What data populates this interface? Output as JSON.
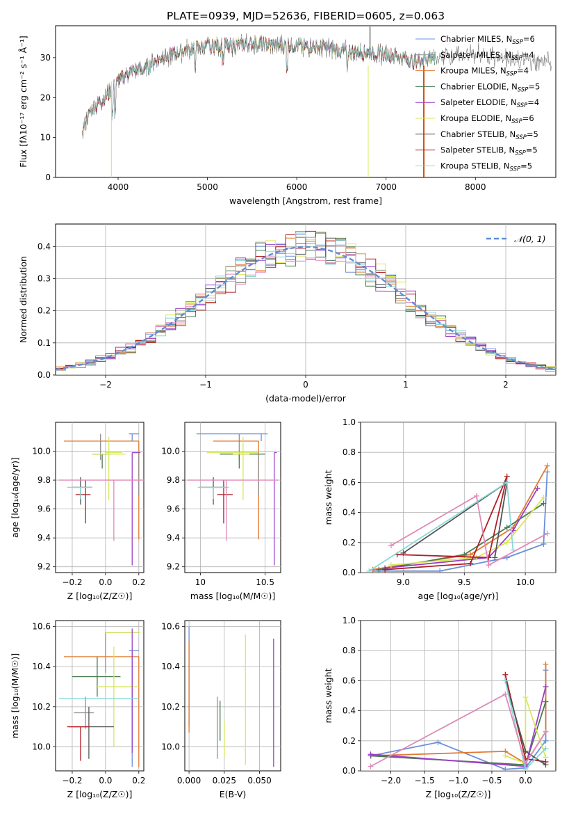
{
  "colors": [
    "#6a8fd9",
    "#8f8f8f",
    "#e07a30",
    "#4a7a50",
    "#9b3fc8",
    "#d8e85a",
    "#555555",
    "#b01e22",
    "#88d8d8",
    "#e088b8"
  ],
  "chart_data": [
    {
      "id": "spectrum",
      "type": "line",
      "title": "PLATE=0939, MJD=52636, FIBERID=0605, z=0.063",
      "xlabel": "wavelength [Angstrom, rest frame]",
      "ylabel": "Flux [fλ10⁻¹⁷ erg cm⁻² s⁻¹ Å⁻¹]",
      "xlim": [
        3300,
        8900
      ],
      "ylim": [
        0,
        38
      ],
      "xticks": [
        "4000",
        "5000",
        "6000",
        "7000",
        "8000"
      ],
      "yticks": [
        "0",
        "10",
        "20",
        "30"
      ],
      "legend": "top-right",
      "legend_entries": [
        {
          "name": "Chabrier MILES, N",
          "sub": "SSP",
          "suffix": "=6"
        },
        {
          "name": "Salpeter MILES, N",
          "sub": "SSP",
          "suffix": "=4"
        },
        {
          "name": "Kroupa MILES, N",
          "sub": "SSP",
          "suffix": "=4"
        },
        {
          "name": "Chabrier ELODIE, N",
          "sub": "SSP",
          "suffix": "=5"
        },
        {
          "name": "Salpeter ELODIE, N",
          "sub": "SSP",
          "suffix": "=4"
        },
        {
          "name": "Kroupa ELODIE, N",
          "sub": "SSP",
          "suffix": "=6"
        },
        {
          "name": "Chabrier STELIB, N",
          "sub": "SSP",
          "suffix": "=5"
        },
        {
          "name": "Salpeter STELIB, N",
          "sub": "SSP",
          "suffix": "=5"
        },
        {
          "name": "Kroupa STELIB, N",
          "sub": "SSP",
          "suffix": "=5"
        }
      ],
      "continuum": [
        [
          3600,
          12
        ],
        [
          3700,
          17
        ],
        [
          3800,
          19
        ],
        [
          3900,
          21
        ],
        [
          4000,
          24
        ],
        [
          4100,
          26
        ],
        [
          4200,
          27
        ],
        [
          4300,
          27
        ],
        [
          4400,
          29
        ],
        [
          4500,
          30
        ],
        [
          4700,
          31.5
        ],
        [
          4900,
          32.5
        ],
        [
          5100,
          33
        ],
        [
          5300,
          33
        ],
        [
          5500,
          33.5
        ],
        [
          5800,
          33
        ],
        [
          6000,
          33
        ],
        [
          6300,
          32.5
        ],
        [
          6600,
          31.5
        ],
        [
          6900,
          31
        ],
        [
          7100,
          30.5
        ],
        [
          7300,
          29
        ],
        [
          7500,
          30
        ],
        [
          7700,
          30.5
        ],
        [
          8000,
          31
        ],
        [
          8300,
          30
        ],
        [
          8500,
          29
        ],
        [
          8800,
          29
        ]
      ]
    },
    {
      "id": "residuals",
      "type": "histogram",
      "xlabel": "(data-model)/error",
      "ylabel": "Normed distribution",
      "xlim": [
        -2.5,
        2.5
      ],
      "ylim": [
        0,
        0.47
      ],
      "xticks": [
        "−2",
        "−1",
        "0",
        "1",
        "2"
      ],
      "yticks": [
        "0.0",
        "0.1",
        "0.2",
        "0.3",
        "0.4"
      ],
      "legend": "top-right",
      "legend_label": "𝒩(0, 1)",
      "bin_width": 0.1
    },
    {
      "id": "age_vs_Z",
      "type": "errorbar",
      "xlabel": "Z [log₁₀(Z/Z☉)]",
      "ylabel": "age  [log₁₀(age/yr)]",
      "xlim": [
        -0.3,
        0.23
      ],
      "ylim": [
        9.16,
        10.2
      ],
      "xticks": [
        "−0.2",
        "0.0",
        "0.2"
      ],
      "yticks": [
        "9.2",
        "9.4",
        "9.6",
        "9.8",
        "10.0"
      ],
      "points": [
        {
          "x": 0.16,
          "y": 10.12,
          "xerr": [
            0.02,
            0.04
          ],
          "yerr": [
            0.05,
            0.0
          ]
        },
        {
          "x": 0.2,
          "y": 10.07,
          "xerr": [
            0.45,
            0.0
          ],
          "yerr": [
            0.68,
            0.0
          ]
        },
        {
          "x": -0.03,
          "y": 10.0,
          "xerr": [
            0.0,
            0.0
          ],
          "yerr": [
            0.06,
            0.12
          ]
        },
        {
          "x": -0.02,
          "y": 9.98,
          "xerr": [
            0.06,
            0.05
          ],
          "yerr": [
            0.1,
            0.0
          ]
        },
        {
          "x": 0.1,
          "y": 9.99,
          "xerr": [
            0.1,
            0.0
          ],
          "yerr": [
            0.0,
            0.0
          ]
        },
        {
          "x": 0.02,
          "y": 9.98,
          "xerr": [
            0.1,
            0.1
          ],
          "yerr": [
            0.32,
            0.12
          ]
        },
        {
          "x": 0.16,
          "y": 9.99,
          "xerr": [
            0.0,
            0.05
          ],
          "yerr": [
            0.78,
            0.0
          ]
        },
        {
          "x": 0.2,
          "y": 9.99,
          "xerr": [
            0.0,
            0.0
          ],
          "yerr": [
            0.3,
            0.0
          ]
        },
        {
          "x": -0.15,
          "y": 9.75,
          "xerr": [
            0.05,
            0.07
          ],
          "yerr": [
            0.12,
            0.07
          ]
        },
        {
          "x": -0.12,
          "y": 9.7,
          "xerr": [
            0.06,
            0.03
          ],
          "yerr": [
            0.2,
            0.1
          ]
        },
        {
          "x": -0.15,
          "y": 9.75,
          "xerr": [
            0.08,
            0.07
          ],
          "yerr": [
            0.08,
            0.0
          ]
        },
        {
          "x": 0.05,
          "y": 9.8,
          "xerr": [
            0.33,
            0.2
          ],
          "yerr": [
            0.42,
            0.0
          ]
        }
      ]
    },
    {
      "id": "age_vs_mass",
      "type": "errorbar",
      "xlabel": "mass [log₁₀(M/M☉)]",
      "ylabel": "",
      "xlim": [
        9.88,
        10.62
      ],
      "ylim": [
        9.16,
        10.2
      ],
      "xticks": [
        "10",
        "10.5"
      ],
      "yticks": [
        "9.2",
        "9.4",
        "9.6",
        "9.8",
        "10.0"
      ],
      "points": [
        {
          "x": 10.47,
          "y": 10.12,
          "xerr": [
            0.5,
            0.05
          ],
          "yerr": [
            0.05,
            0.0
          ]
        },
        {
          "x": 10.45,
          "y": 10.07,
          "xerr": [
            0.35,
            0.0
          ],
          "yerr": [
            0.68,
            0.0
          ]
        },
        {
          "x": 10.3,
          "y": 10.0,
          "xerr": [
            0.0,
            0.0
          ],
          "yerr": [
            0.06,
            0.12
          ]
        },
        {
          "x": 10.3,
          "y": 9.98,
          "xerr": [
            0.15,
            0.2
          ],
          "yerr": [
            0.1,
            0.0
          ]
        },
        {
          "x": 10.35,
          "y": 9.99,
          "xerr": [
            0.3,
            0.1
          ],
          "yerr": [
            0.0,
            0.0
          ]
        },
        {
          "x": 10.33,
          "y": 9.98,
          "xerr": [
            0.08,
            0.05
          ],
          "yerr": [
            0.32,
            0.12
          ]
        },
        {
          "x": 10.57,
          "y": 9.99,
          "xerr": [
            0.0,
            0.02
          ],
          "yerr": [
            0.78,
            0.0
          ]
        },
        {
          "x": 10.45,
          "y": 9.99,
          "xerr": [
            0.0,
            0.0
          ],
          "yerr": [
            0.3,
            0.0
          ]
        },
        {
          "x": 10.1,
          "y": 9.75,
          "xerr": [
            0.1,
            0.1
          ],
          "yerr": [
            0.12,
            0.07
          ]
        },
        {
          "x": 10.18,
          "y": 9.7,
          "xerr": [
            0.05,
            0.07
          ],
          "yerr": [
            0.2,
            0.1
          ]
        },
        {
          "x": 10.1,
          "y": 9.75,
          "xerr": [
            0.12,
            0.12
          ],
          "yerr": [
            0.08,
            0.0
          ]
        },
        {
          "x": 10.2,
          "y": 9.8,
          "xerr": [
            0.3,
            0.4
          ],
          "yerr": [
            0.42,
            0.0
          ]
        }
      ]
    },
    {
      "id": "weight_vs_age",
      "type": "line",
      "xlabel": "age  [log₁₀(age/yr)]",
      "ylabel": "mass weight",
      "xlim": [
        8.65,
        10.25
      ],
      "ylim": [
        0.0,
        1.0
      ],
      "xticks": [
        "9.0",
        "9.5",
        "10.0"
      ],
      "yticks": [
        "0.0",
        "0.2",
        "0.4",
        "0.6",
        "0.8",
        "1.0"
      ],
      "series": [
        {
          "color": 0,
          "x": [
            8.75,
            9.3,
            9.85,
            10.15,
            10.18
          ],
          "y": [
            0.01,
            0.01,
            0.1,
            0.19,
            0.67
          ]
        },
        {
          "color": 2,
          "x": [
            8.75,
            9.55,
            9.9,
            10.18
          ],
          "y": [
            0.02,
            0.12,
            0.3,
            0.71
          ]
        },
        {
          "color": 3,
          "x": [
            8.8,
            9.5,
            9.85,
            10.15
          ],
          "y": [
            0.02,
            0.12,
            0.3,
            0.46
          ]
        },
        {
          "color": 4,
          "x": [
            8.85,
            9.7,
            9.9,
            10.1
          ],
          "y": [
            0.03,
            0.1,
            0.28,
            0.56
          ]
        },
        {
          "color": 5,
          "x": [
            8.9,
            9.6,
            9.85,
            10.15
          ],
          "y": [
            0.05,
            0.1,
            0.2,
            0.5
          ]
        },
        {
          "color": 7,
          "x": [
            8.95,
            9.7,
            9.85,
            9.55,
            8.85
          ],
          "y": [
            0.12,
            0.1,
            0.64,
            0.06,
            0.02
          ]
        },
        {
          "color": 6,
          "x": [
            9.0,
            9.85,
            9.75
          ],
          "y": [
            0.13,
            0.6,
            0.1
          ]
        },
        {
          "color": 8,
          "x": [
            8.72,
            9.85,
            9.9
          ],
          "y": [
            0.01,
            0.6,
            0.15
          ]
        },
        {
          "color": 9,
          "x": [
            8.9,
            9.6,
            9.7,
            10.18
          ],
          "y": [
            0.18,
            0.51,
            0.05,
            0.26
          ]
        }
      ]
    },
    {
      "id": "mass_vs_Z",
      "type": "errorbar",
      "xlabel": "Z [log₁₀(Z/Z☉)]",
      "ylabel": "mass [log₁₀(M/M☉)]",
      "xlim": [
        -0.3,
        0.23
      ],
      "ylim": [
        9.88,
        10.63
      ],
      "xticks": [
        "−0.2",
        "0.0",
        "0.2"
      ],
      "yticks": [
        "10.0",
        "10.2",
        "10.4",
        "10.6"
      ],
      "points": [
        {
          "x": 0.16,
          "y": 10.48,
          "xerr": [
            0.02,
            0.04
          ],
          "yerr": [
            0.58,
            0.0
          ]
        },
        {
          "x": 0.2,
          "y": 10.45,
          "xerr": [
            0.45,
            0.0
          ],
          "yerr": [
            0.55,
            0.0
          ]
        },
        {
          "x": 0.0,
          "y": 10.57,
          "xerr": [
            0.0,
            0.2
          ],
          "yerr": [
            0.2,
            0.0
          ]
        },
        {
          "x": -0.05,
          "y": 10.35,
          "xerr": [
            0.15,
            0.14
          ],
          "yerr": [
            0.1,
            0.1
          ]
        },
        {
          "x": 0.05,
          "y": 10.57,
          "xerr": [
            0.05,
            0.16
          ],
          "yerr": [
            0.0,
            0.0
          ]
        },
        {
          "x": 0.05,
          "y": 10.3,
          "xerr": [
            0.1,
            0.15
          ],
          "yerr": [
            0.3,
            0.2
          ]
        },
        {
          "x": 0.16,
          "y": 10.57,
          "xerr": [
            0.0,
            0.0
          ],
          "yerr": [
            0.6,
            0.02
          ]
        },
        {
          "x": -0.12,
          "y": 10.17,
          "xerr": [
            0.07,
            0.05
          ],
          "yerr": [
            0.08,
            0.08
          ]
        },
        {
          "x": -0.1,
          "y": 10.1,
          "xerr": [
            0.12,
            0.15
          ],
          "yerr": [
            0.16,
            0.1
          ]
        },
        {
          "x": -0.15,
          "y": 10.1,
          "xerr": [
            0.08,
            0.05
          ],
          "yerr": [
            0.17,
            0.0
          ]
        },
        {
          "x": 0.05,
          "y": 10.24,
          "xerr": [
            0.33,
            0.15
          ],
          "yerr": [
            0.0,
            0.0
          ]
        }
      ]
    },
    {
      "id": "mass_vs_ebv",
      "type": "errorbar",
      "xlabel": "E(B-V)",
      "ylabel": "",
      "xlim": [
        -0.003,
        0.065
      ],
      "ylim": [
        9.88,
        10.63
      ],
      "xticks": [
        "0.000",
        "0.025",
        "0.050"
      ],
      "yticks": [
        "10.0",
        "10.2",
        "10.4",
        "10.6"
      ],
      "points": [
        {
          "x": 0.0,
          "y": 10.3,
          "xerr": [
            0,
            0
          ],
          "yerr": [
            0.2,
            0.3
          ]
        },
        {
          "x": 0.0,
          "y": 10.3,
          "xerr": [
            0,
            0
          ],
          "yerr": [
            0.23,
            0.23
          ]
        },
        {
          "x": 0.02,
          "y": 10.1,
          "xerr": [
            0,
            0
          ],
          "yerr": [
            0.16,
            0.15
          ]
        },
        {
          "x": 0.022,
          "y": 10.13,
          "xerr": [
            0,
            0
          ],
          "yerr": [
            0.1,
            0.1
          ]
        },
        {
          "x": 0.025,
          "y": 10.05,
          "xerr": [
            0,
            0
          ],
          "yerr": [
            0.1,
            0.08
          ]
        },
        {
          "x": 0.04,
          "y": 10.25,
          "xerr": [
            0,
            0
          ],
          "yerr": [
            0.34,
            0.31
          ]
        },
        {
          "x": 0.06,
          "y": 10.22,
          "xerr": [
            0,
            0
          ],
          "yerr": [
            0.32,
            0.32
          ]
        }
      ]
    },
    {
      "id": "weight_vs_Z",
      "type": "line",
      "xlabel": "Z [log₁₀(Z/Z☉)]",
      "ylabel": "mass weight",
      "xlim": [
        -2.45,
        0.45
      ],
      "ylim": [
        0.0,
        1.0
      ],
      "xticks": [
        "−2.0",
        "−1.5",
        "−1.0",
        "−0.5",
        "0.0"
      ],
      "yticks": [
        "0.0",
        "0.2",
        "0.4",
        "0.6",
        "0.8",
        "1.0"
      ],
      "series": [
        {
          "color": 0,
          "x": [
            -2.3,
            -1.3,
            -0.3,
            0.0,
            0.3,
            0.3
          ],
          "y": [
            0.1,
            0.19,
            0.01,
            0.02,
            0.2,
            0.67
          ]
        },
        {
          "color": 2,
          "x": [
            -2.3,
            -0.3,
            0.0,
            0.3,
            0.3
          ],
          "y": [
            0.1,
            0.13,
            0.05,
            0.26,
            0.71
          ]
        },
        {
          "color": 3,
          "x": [
            -2.3,
            0.0,
            0.3
          ],
          "y": [
            0.1,
            0.04,
            0.46
          ]
        },
        {
          "color": 4,
          "x": [
            -2.3,
            0.0,
            0.3
          ],
          "y": [
            0.11,
            0.03,
            0.56
          ]
        },
        {
          "color": 5,
          "x": [
            -0.3,
            0.0,
            0.0,
            0.3
          ],
          "y": [
            0.1,
            0.05,
            0.49,
            0.09
          ]
        },
        {
          "color": 7,
          "x": [
            -0.3,
            0.0,
            0.3
          ],
          "y": [
            0.64,
            0.08,
            0.06
          ]
        },
        {
          "color": 6,
          "x": [
            -0.3,
            0.0,
            0.3
          ],
          "y": [
            0.6,
            0.13,
            0.04
          ]
        },
        {
          "color": 8,
          "x": [
            -0.3,
            0.0,
            0.3
          ],
          "y": [
            0.6,
            0.01,
            0.15
          ]
        },
        {
          "color": 9,
          "x": [
            -2.3,
            -0.3,
            0.0,
            0.3
          ],
          "y": [
            0.03,
            0.51,
            0.05,
            0.26
          ]
        }
      ]
    }
  ]
}
